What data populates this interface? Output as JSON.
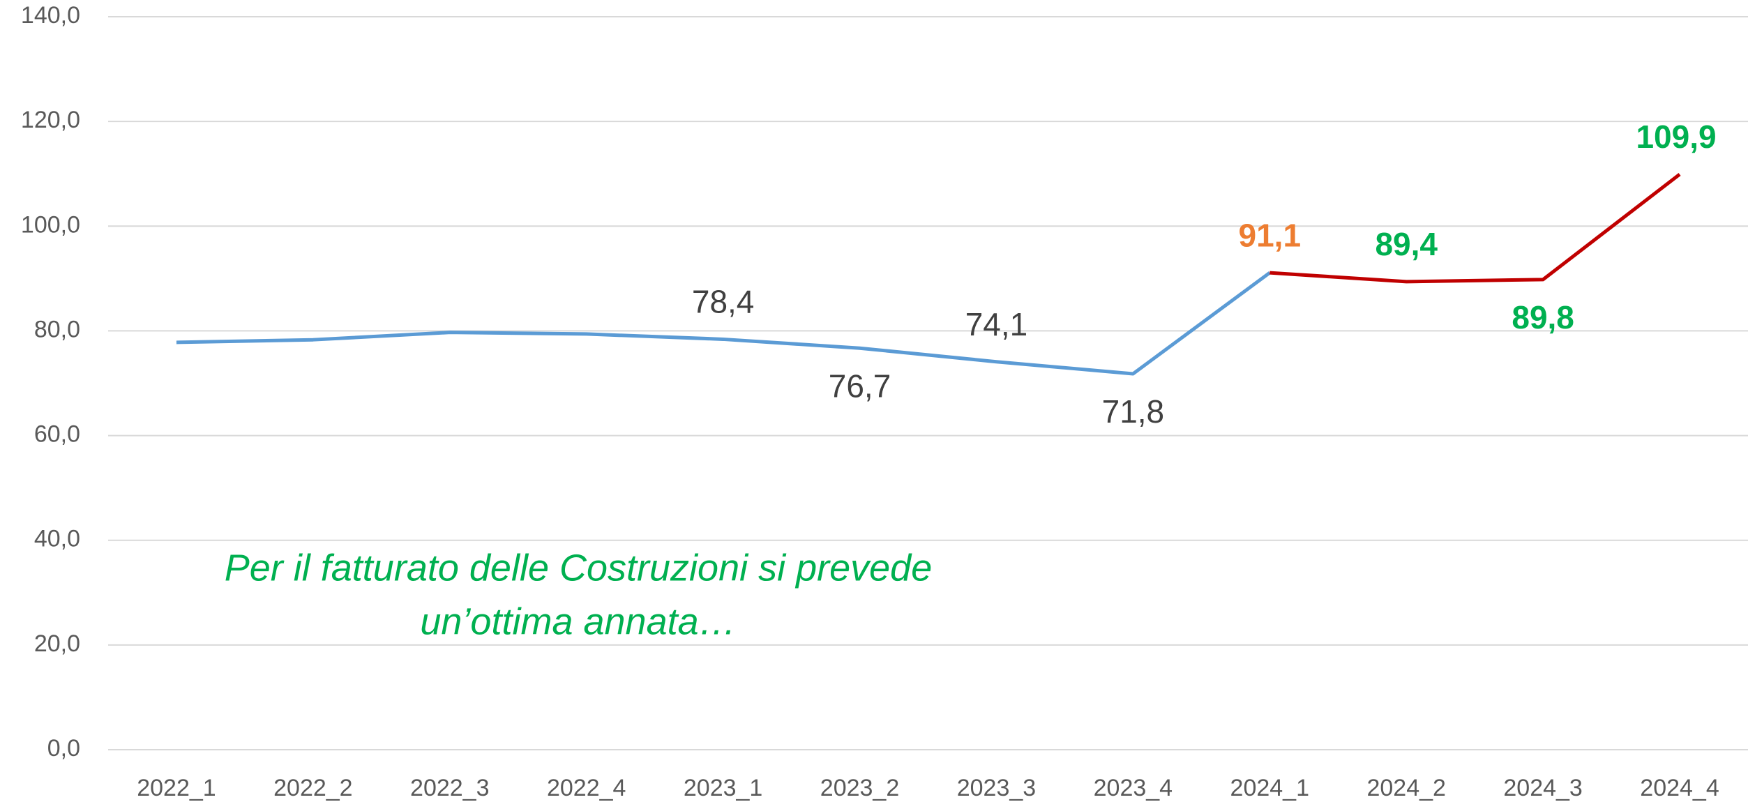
{
  "chart_data": {
    "type": "line",
    "categories": [
      "2022_1",
      "2022_2",
      "2022_3",
      "2022_4",
      "2023_1",
      "2023_2",
      "2023_3",
      "2023_4",
      "2024_1",
      "2024_2",
      "2024_3",
      "2024_4"
    ],
    "series": [
      {
        "color": "#5b9bd5",
        "values": [
          77.8,
          78.3,
          79.7,
          79.4,
          78.4,
          76.7,
          74.1,
          71.8,
          91.1,
          null,
          null,
          null
        ],
        "value_labels": [
          null,
          null,
          null,
          null,
          "78,4",
          "76,7",
          "74,1",
          "71,8",
          null,
          null,
          null,
          null
        ],
        "label_colors": [
          null,
          null,
          null,
          null,
          "#404040",
          "#404040",
          "#404040",
          "#404040",
          null,
          null,
          null,
          null
        ]
      },
      {
        "color": "#c00000",
        "values": [
          null,
          null,
          null,
          null,
          null,
          null,
          null,
          null,
          91.1,
          89.4,
          89.8,
          109.9
        ],
        "value_labels": [
          null,
          null,
          null,
          null,
          null,
          null,
          null,
          null,
          "91,1",
          "89,4",
          "89,8",
          "109,9"
        ],
        "label_colors": [
          null,
          null,
          null,
          null,
          null,
          null,
          null,
          null,
          "#ed7d31",
          "#00b050",
          "#00b050",
          "#00b050"
        ]
      }
    ],
    "ylim": [
      0,
      140
    ],
    "yticks": [
      {
        "value": 0,
        "label": "0,0"
      },
      {
        "value": 20,
        "label": "20,0"
      },
      {
        "value": 40,
        "label": "40,0"
      },
      {
        "value": 60,
        "label": "60,0"
      },
      {
        "value": 80,
        "label": "80,0"
      },
      {
        "value": 100,
        "label": "100,0"
      },
      {
        "value": 120,
        "label": "120,0"
      },
      {
        "value": 140,
        "label": "140,0"
      }
    ],
    "grid": true,
    "annotation": [
      "Per il fatturato delle Costruzioni si prevede",
      "un’ottima annata…"
    ]
  }
}
